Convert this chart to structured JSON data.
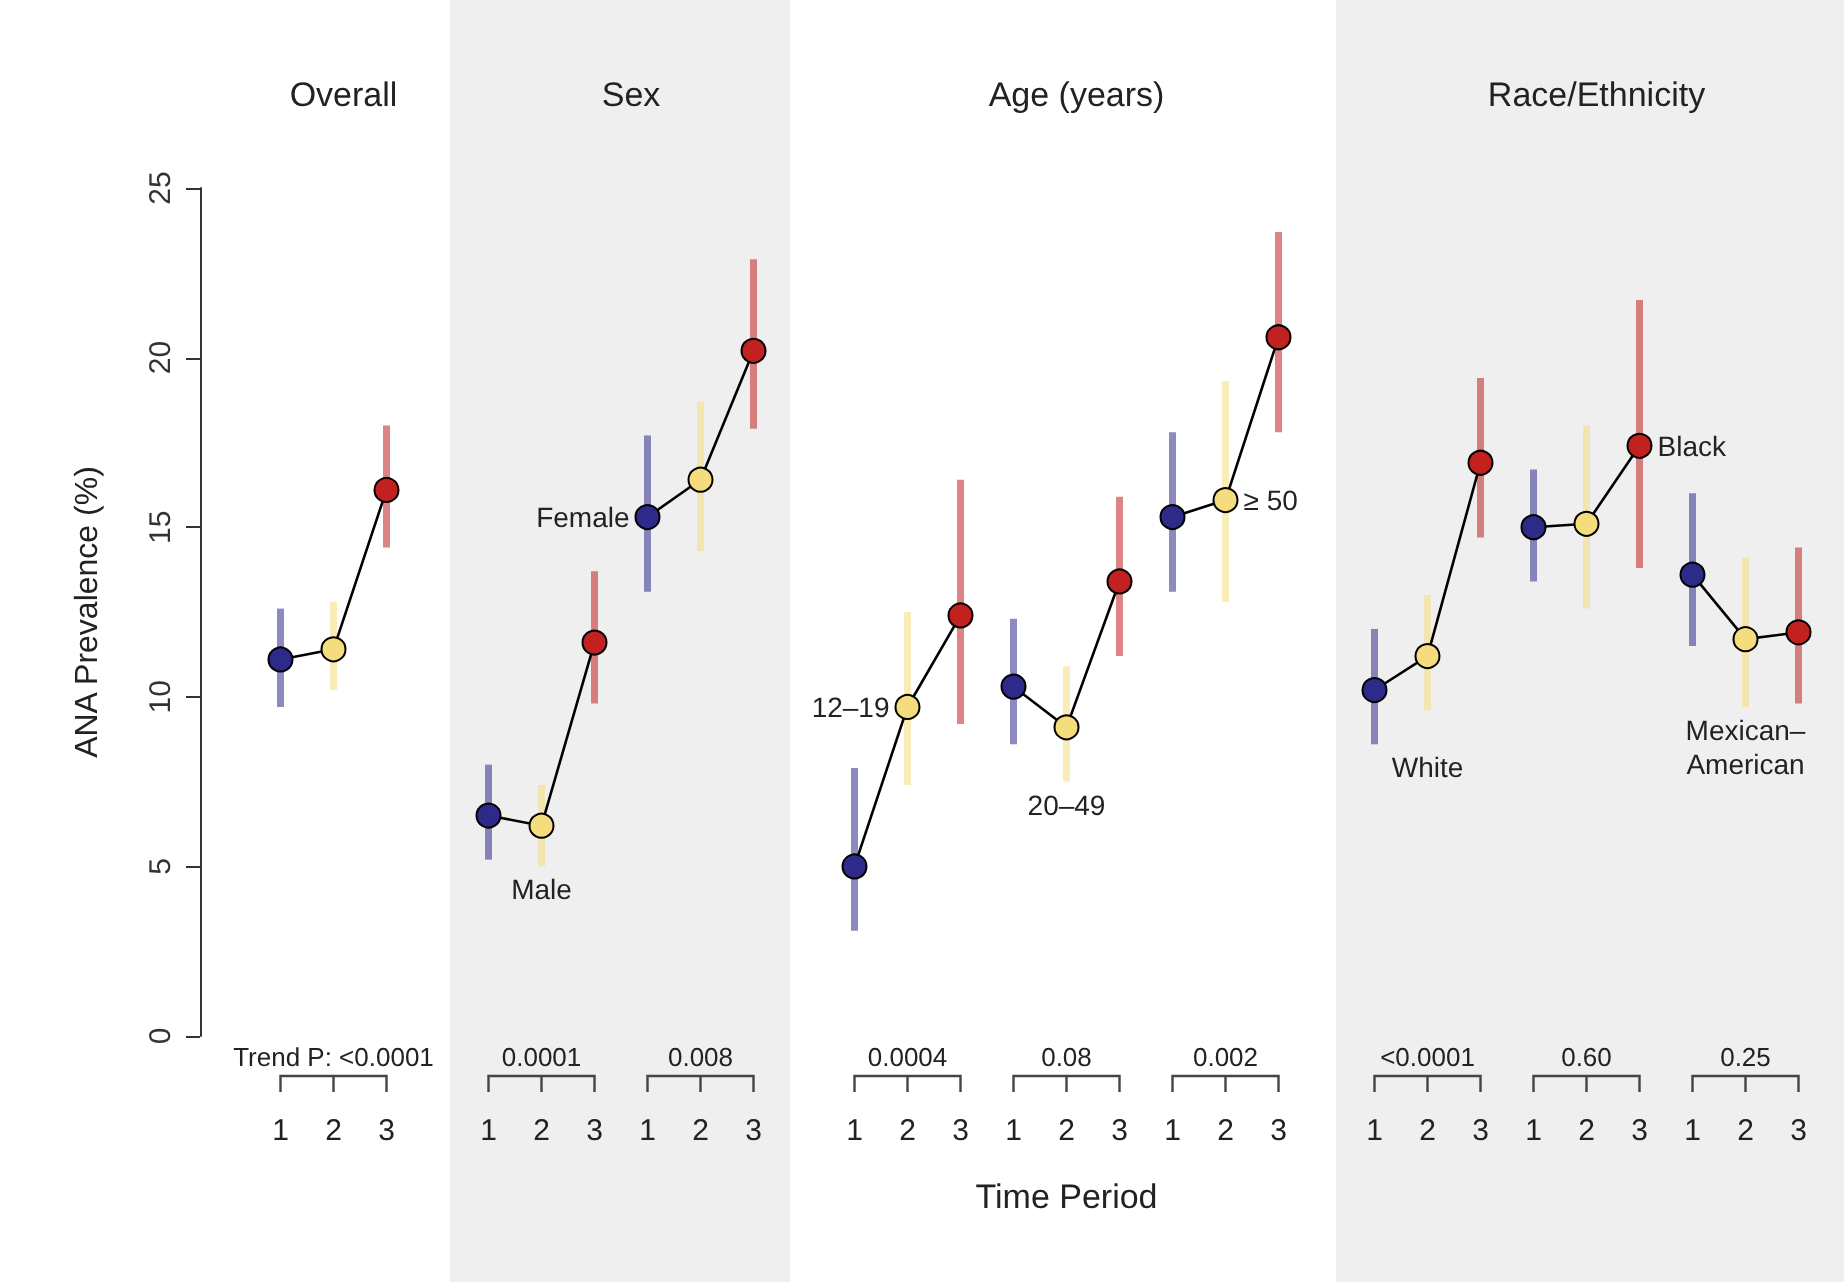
{
  "chart_data": [
    {
      "type": "line",
      "title": "Overall",
      "ylabel": "ANA Prevalence (%)",
      "categories": [
        "1",
        "2",
        "3"
      ],
      "ylim": [
        0,
        25
      ],
      "yticks": [
        0,
        5,
        10,
        15,
        20,
        25
      ],
      "marker": "circle",
      "line_style": "solid",
      "annotations": [
        "Trend P: <0.0001"
      ],
      "series": [
        {
          "color": "#000000",
          "colors": [
            "#2e2a8a",
            "#f5dc7c",
            "#c1211f"
          ],
          "values": [
            11.1,
            11.4,
            16.1
          ],
          "errors": [
            [
              9.7,
              12.6
            ],
            [
              10.2,
              12.8
            ],
            [
              14.4,
              18.0
            ]
          ]
        }
      ]
    },
    {
      "type": "line",
      "title": "Sex",
      "categories": [
        "1",
        "2",
        "3",
        "1",
        "2",
        "3"
      ],
      "ylim": [
        0,
        25
      ],
      "tick_labels": "x",
      "marker": "circle",
      "line_style": "solid",
      "annotations": [
        "0.0001",
        "0.008"
      ],
      "series": [
        {
          "name": "Male",
          "color": "#000000",
          "colors": [
            "#2e2a8a",
            "#f5dc7c",
            "#c1211f",
            null,
            null,
            null
          ],
          "values": [
            6.5,
            6.2,
            11.6,
            null,
            null,
            null
          ],
          "errors": [
            [
              5.2,
              8.0
            ],
            [
              5.0,
              7.4
            ],
            [
              9.8,
              13.7
            ],
            null,
            null,
            null
          ]
        },
        {
          "name": "Female",
          "color": "#000000",
          "colors": [
            null,
            null,
            null,
            "#2e2a8a",
            "#f5dc7c",
            "#c1211f"
          ],
          "values": [
            null,
            null,
            null,
            15.3,
            16.4,
            20.2
          ],
          "errors": [
            null,
            null,
            null,
            [
              13.1,
              17.7
            ],
            [
              14.3,
              18.7
            ],
            [
              17.9,
              22.9
            ]
          ]
        }
      ]
    },
    {
      "type": "line",
      "title": "Age (years)",
      "xlabel": "Time Period",
      "categories": [
        "1",
        "2",
        "3",
        "1",
        "2",
        "3",
        "1",
        "2",
        "3"
      ],
      "ylim": [
        0,
        25
      ],
      "tick_labels": "x",
      "marker": "circle",
      "line_style": "solid",
      "annotations": [
        "0.0004",
        "0.08",
        "0.002"
      ],
      "series": [
        {
          "name": "12–19",
          "color": "#000000",
          "colors": [
            "#2e2a8a",
            "#f5dc7c",
            "#c1211f",
            null,
            null,
            null,
            null,
            null,
            null
          ],
          "values": [
            5.0,
            9.7,
            12.4,
            null,
            null,
            null,
            null,
            null,
            null
          ],
          "errors": [
            [
              3.1,
              7.9
            ],
            [
              7.4,
              12.5
            ],
            [
              9.2,
              16.4
            ],
            null,
            null,
            null,
            null,
            null,
            null
          ]
        },
        {
          "name": "20–49",
          "color": "#000000",
          "colors": [
            null,
            null,
            null,
            "#2e2a8a",
            "#f5dc7c",
            "#c1211f",
            null,
            null,
            null
          ],
          "values": [
            null,
            null,
            null,
            10.3,
            9.1,
            13.4,
            null,
            null,
            null
          ],
          "errors": [
            null,
            null,
            null,
            [
              8.6,
              12.3
            ],
            [
              7.5,
              10.9
            ],
            [
              11.2,
              15.9
            ],
            null,
            null,
            null
          ]
        },
        {
          "name": "≥ 50",
          "color": "#000000",
          "colors": [
            null,
            null,
            null,
            null,
            null,
            null,
            "#2e2a8a",
            "#f5dc7c",
            "#c1211f"
          ],
          "values": [
            null,
            null,
            null,
            null,
            null,
            null,
            15.3,
            15.8,
            20.6
          ],
          "errors": [
            null,
            null,
            null,
            null,
            null,
            null,
            [
              13.1,
              17.8
            ],
            [
              12.8,
              19.3
            ],
            [
              17.8,
              23.7
            ]
          ]
        }
      ]
    },
    {
      "type": "line",
      "title": "Race/Ethnicity",
      "categories": [
        "1",
        "2",
        "3",
        "1",
        "2",
        "3",
        "1",
        "2",
        "3"
      ],
      "ylim": [
        0,
        25
      ],
      "tick_labels": "x",
      "marker": "circle",
      "line_style": "solid",
      "annotations": [
        "<0.0001",
        "0.60",
        "0.25"
      ],
      "series": [
        {
          "name": "White",
          "color": "#000000",
          "colors": [
            "#2e2a8a",
            "#f5dc7c",
            "#c1211f",
            null,
            null,
            null,
            null,
            null,
            null
          ],
          "values": [
            10.2,
            11.2,
            16.9,
            null,
            null,
            null,
            null,
            null,
            null
          ],
          "errors": [
            [
              8.6,
              12.0
            ],
            [
              9.6,
              13.0
            ],
            [
              14.7,
              19.4
            ],
            null,
            null,
            null,
            null,
            null,
            null
          ]
        },
        {
          "name": "Black",
          "color": "#000000",
          "colors": [
            null,
            null,
            null,
            "#2e2a8a",
            "#f5dc7c",
            "#c1211f",
            null,
            null,
            null
          ],
          "values": [
            null,
            null,
            null,
            15.0,
            15.1,
            17.4,
            null,
            null,
            null
          ],
          "errors": [
            null,
            null,
            null,
            [
              13.4,
              16.7
            ],
            [
              12.6,
              18.0
            ],
            [
              13.8,
              21.7
            ],
            null,
            null,
            null
          ]
        },
        {
          "name": "Mexican–American",
          "color": "#000000",
          "colors": [
            null,
            null,
            null,
            null,
            null,
            null,
            "#2e2a8a",
            "#f5dc7c",
            "#c1211f"
          ],
          "values": [
            null,
            null,
            null,
            null,
            null,
            null,
            13.6,
            11.7,
            11.9
          ],
          "errors": [
            null,
            null,
            null,
            null,
            null,
            null,
            [
              11.5,
              16.0
            ],
            [
              9.7,
              14.1
            ],
            [
              9.8,
              14.4
            ]
          ]
        }
      ]
    }
  ]
}
